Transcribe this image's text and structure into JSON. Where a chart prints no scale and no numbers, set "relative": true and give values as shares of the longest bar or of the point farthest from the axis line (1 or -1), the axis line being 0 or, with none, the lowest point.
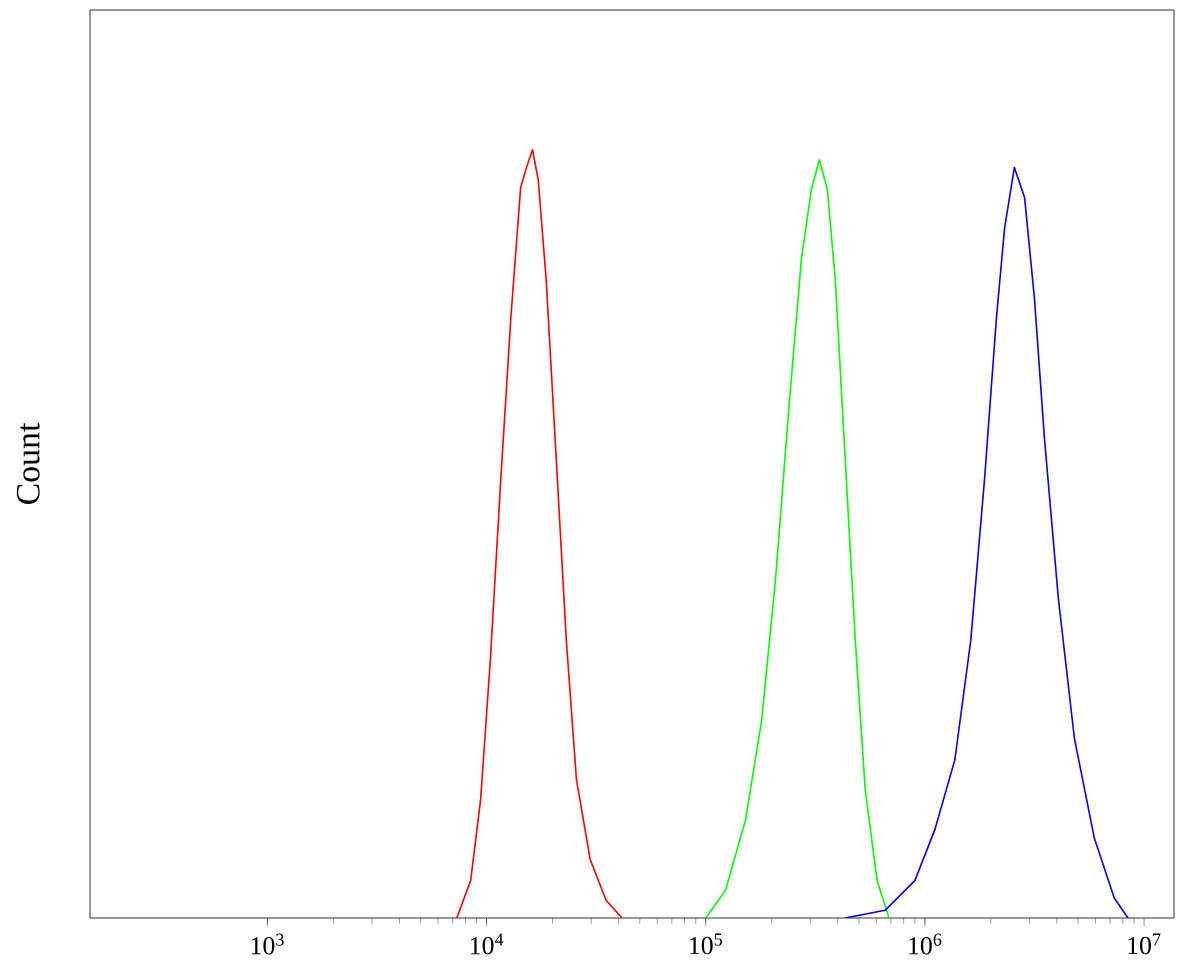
{
  "chart_data": {
    "type": "line",
    "relative": true,
    "log": "x",
    "ylabel": "Count",
    "xlim": [
      155,
      13700000
    ],
    "xticks": [
      {
        "value": 1000,
        "label": "10$^{3}$"
      },
      {
        "value": 10000,
        "label": "10$^{4}$"
      },
      {
        "value": 100000,
        "label": "10$^{5}$"
      },
      {
        "value": 1000000,
        "label": "10$^{6}$"
      },
      {
        "value": 10000000,
        "label": "10$^{7}$"
      }
    ],
    "series": [
      {
        "color": "#ff0000",
        "x": [
          7310,
          8460,
          9390,
          10400,
          11600,
          12900,
          14300,
          15200,
          16200,
          17200,
          18700,
          20800,
          23100,
          25700,
          29700,
          35100,
          41500
        ],
        "values": [
          0,
          0.049,
          0.154,
          0.336,
          0.57,
          0.781,
          0.951,
          0.977,
          1,
          0.961,
          0.831,
          0.596,
          0.362,
          0.18,
          0.076,
          0.023,
          0
        ]
      },
      {
        "color": "#00ff00",
        "x": [
          100000,
          123000,
          152000,
          180000,
          208000,
          241000,
          273000,
          303000,
          330000,
          359000,
          390000,
          433000,
          481000,
          534000,
          605000,
          686000
        ],
        "values": [
          0,
          0.036,
          0.128,
          0.258,
          0.44,
          0.674,
          0.857,
          0.948,
          0.987,
          0.948,
          0.831,
          0.596,
          0.362,
          0.167,
          0.049,
          0
        ]
      },
      {
        "color": "#0000ff",
        "x": [
          433000,
          658000,
          901000,
          1110000,
          1370000,
          1620000,
          1870000,
          2120000,
          2310000,
          2560000,
          2850000,
          3160000,
          3510000,
          4060000,
          4810000,
          5930000,
          7310000,
          8450000
        ],
        "values": [
          0,
          0.01,
          0.049,
          0.115,
          0.206,
          0.362,
          0.57,
          0.781,
          0.898,
          0.977,
          0.938,
          0.807,
          0.625,
          0.417,
          0.234,
          0.104,
          0.026,
          0
        ]
      }
    ]
  }
}
